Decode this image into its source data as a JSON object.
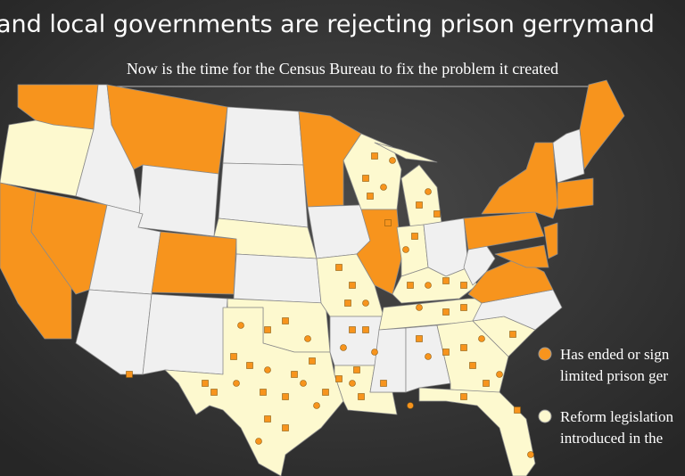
{
  "header": {
    "title": "and local governments are rejecting prison gerrymand",
    "subtitle": "Now is the time for the Census Bureau to fix the problem it created"
  },
  "legend": [
    {
      "lines": [
        "Has ended or sign",
        "limited prison ger"
      ],
      "color": "#f7941d"
    },
    {
      "lines": [
        "Reform legislation",
        "introduced in the"
      ],
      "color": "#fdf9cf"
    }
  ]
}
